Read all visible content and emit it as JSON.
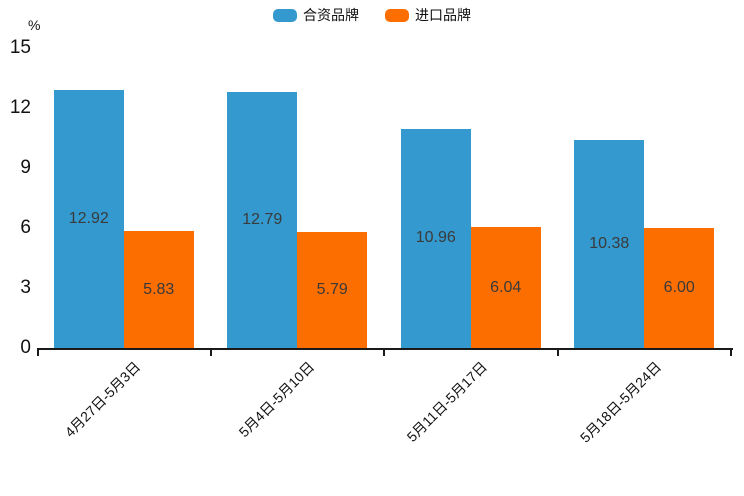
{
  "chart_data": {
    "type": "bar",
    "title": "",
    "xlabel": "",
    "ylabel": "%",
    "categories": [
      "4月27日-5月3日",
      "5月4日-5月10日",
      "5月11日-5月17日",
      "5月18日-5月24日"
    ],
    "series": [
      {
        "name": "合资品牌",
        "color": "#3499ce",
        "values": [
          12.92,
          12.79,
          10.96,
          10.38
        ],
        "labels": [
          "12.92",
          "12.79",
          "10.96",
          "10.38"
        ]
      },
      {
        "name": "进口品牌",
        "color": "#fc6e00",
        "values": [
          5.83,
          5.79,
          6.04,
          6.0
        ],
        "labels": [
          "5.83",
          "5.79",
          "6.04",
          "6.00"
        ]
      }
    ],
    "yticks": [
      0,
      3,
      6,
      9,
      12,
      15
    ],
    "ylim": [
      0,
      15
    ],
    "grid": false,
    "legend_position": "top"
  }
}
